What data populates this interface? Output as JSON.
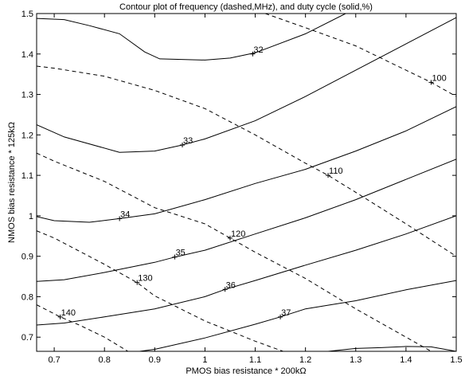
{
  "chart_data": {
    "type": "contour",
    "title": "Contour plot of frequency (dashed,MHz), and duty cycle (solid,%)",
    "xlabel": "PMOS bias resistance * 200kΩ",
    "ylabel": "NMOS bias resistance * 125kΩ",
    "xlim": [
      0.665,
      1.5
    ],
    "ylim": [
      0.665,
      1.5
    ],
    "xticks": [
      0.7,
      0.8,
      0.9,
      1,
      1.1,
      1.2,
      1.3,
      1.4,
      1.5
    ],
    "xtick_labels": [
      "0.7",
      "0.8",
      "0.9",
      "1",
      "1.1",
      "1.2",
      "1.3",
      "1.4",
      "1.5"
    ],
    "yticks": [
      0.7,
      0.8,
      0.9,
      1,
      1.1,
      1.2,
      1.3,
      1.4,
      1.5
    ],
    "ytick_labels": [
      "0.7",
      "0.8",
      "0.9",
      "1",
      "1.1",
      "1.2",
      "1.3",
      "1.4",
      "1.5"
    ],
    "grid": false,
    "series": [
      {
        "name": "32",
        "style": "solid",
        "label_at": [
          1.095,
          1.4
        ],
        "x": [
          0.665,
          0.72,
          0.77,
          0.83,
          0.88,
          0.91,
          1.0,
          1.05,
          1.1,
          1.2,
          1.28
        ],
        "y": [
          1.488,
          1.485,
          1.47,
          1.45,
          1.405,
          1.388,
          1.385,
          1.39,
          1.403,
          1.45,
          1.5
        ]
      },
      {
        "name": "33",
        "style": "solid",
        "label_at": [
          0.955,
          1.175
        ],
        "x": [
          0.665,
          0.72,
          0.83,
          0.9,
          0.955,
          1.0,
          1.1,
          1.2,
          1.3,
          1.4,
          1.5
        ],
        "y": [
          1.225,
          1.195,
          1.157,
          1.16,
          1.175,
          1.19,
          1.235,
          1.295,
          1.36,
          1.425,
          1.49
        ]
      },
      {
        "name": "34",
        "style": "solid",
        "label_at": [
          0.83,
          0.993
        ],
        "x": [
          0.665,
          0.7,
          0.77,
          0.83,
          0.9,
          1.0,
          1.1,
          1.2,
          1.3,
          1.4,
          1.5
        ],
        "y": [
          0.998,
          0.988,
          0.984,
          0.993,
          1.005,
          1.04,
          1.08,
          1.115,
          1.16,
          1.21,
          1.27
        ]
      },
      {
        "name": "35",
        "style": "solid",
        "label_at": [
          0.94,
          0.898
        ],
        "x": [
          0.665,
          0.72,
          0.8,
          0.9,
          0.94,
          1.0,
          1.1,
          1.2,
          1.3,
          1.4,
          1.5
        ],
        "y": [
          0.838,
          0.842,
          0.86,
          0.885,
          0.898,
          0.915,
          0.955,
          0.995,
          1.04,
          1.09,
          1.14
        ]
      },
      {
        "name": "36",
        "style": "solid",
        "label_at": [
          1.04,
          0.818
        ],
        "x": [
          0.665,
          0.72,
          0.8,
          0.9,
          1.0,
          1.04,
          1.1,
          1.2,
          1.3,
          1.4,
          1.5
        ],
        "y": [
          0.73,
          0.735,
          0.75,
          0.77,
          0.8,
          0.818,
          0.84,
          0.878,
          0.915,
          0.955,
          1.0
        ]
      },
      {
        "name": "37",
        "style": "solid",
        "label_at": [
          1.15,
          0.75
        ],
        "x": [
          0.87,
          0.9,
          1.0,
          1.1,
          1.15,
          1.2,
          1.3,
          1.4,
          1.5
        ],
        "y": [
          0.665,
          0.67,
          0.698,
          0.732,
          0.75,
          0.77,
          0.79,
          0.817,
          0.84
        ]
      },
      {
        "name": "",
        "style": "solid",
        "label_at": null,
        "x": [
          1.245,
          1.3,
          1.35,
          1.4,
          1.45,
          1.5
        ],
        "y": [
          0.665,
          0.672,
          0.674,
          0.677,
          0.676,
          0.665
        ]
      },
      {
        "name": "100",
        "style": "dashed",
        "label_at": [
          1.45,
          1.33
        ],
        "x": [
          1.12,
          1.2,
          1.3,
          1.4,
          1.45,
          1.5
        ],
        "y": [
          1.5,
          1.465,
          1.42,
          1.36,
          1.33,
          1.295
        ]
      },
      {
        "name": "110",
        "style": "dashed",
        "label_at": [
          1.245,
          1.1
        ],
        "x": [
          0.665,
          0.7,
          0.8,
          0.9,
          1.0,
          1.1,
          1.2,
          1.245,
          1.3,
          1.4,
          1.5
        ],
        "y": [
          1.37,
          1.365,
          1.345,
          1.31,
          1.265,
          1.2,
          1.13,
          1.1,
          1.058,
          0.98,
          0.9
        ]
      },
      {
        "name": "120",
        "style": "dashed",
        "label_at": [
          1.05,
          0.945
        ],
        "x": [
          0.665,
          0.7,
          0.8,
          0.9,
          1.0,
          1.05,
          1.1,
          1.2,
          1.3,
          1.4,
          1.5
        ],
        "y": [
          1.155,
          1.135,
          1.085,
          1.02,
          0.98,
          0.945,
          0.91,
          0.845,
          0.77,
          0.7,
          0.63
        ]
      },
      {
        "name": "130",
        "style": "dashed",
        "label_at": [
          0.865,
          0.835
        ],
        "x": [
          0.665,
          0.7,
          0.8,
          0.865,
          0.9,
          1.0,
          1.1,
          1.2,
          1.24
        ],
        "y": [
          0.963,
          0.945,
          0.88,
          0.835,
          0.802,
          0.74,
          0.69,
          0.645,
          0.62
        ]
      },
      {
        "name": "140",
        "style": "dashed",
        "label_at": [
          0.712,
          0.75
        ],
        "x": [
          0.665,
          0.712,
          0.75,
          0.8,
          0.88
        ],
        "y": [
          0.78,
          0.75,
          0.73,
          0.7,
          0.64
        ]
      }
    ]
  }
}
